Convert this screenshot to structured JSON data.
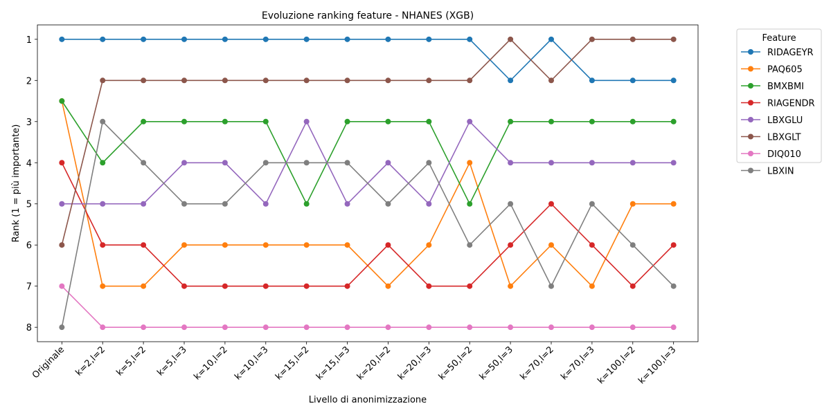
{
  "chart_data": {
    "type": "line",
    "title": "Evoluzione ranking feature - NHANES (XGB)",
    "xlabel": "Livello di anonimizzazione",
    "ylabel": "Rank (1 = più importante)",
    "categories": [
      "Originale",
      "k=2,l=2",
      "k=5,l=2",
      "k=5,l=3",
      "k=10,l=2",
      "k=10,l=3",
      "k=15,l=2",
      "k=15,l=3",
      "k=20,l=2",
      "k=20,l=3",
      "k=50,l=2",
      "k=50,l=3",
      "k=70,l=2",
      "k=70,l=3",
      "k=100,l=2",
      "k=100,l=3"
    ],
    "yticks": [
      "1",
      "2",
      "3",
      "4",
      "5",
      "6",
      "7",
      "8"
    ],
    "ylim": [
      0.65,
      8.35
    ],
    "y_inverted": true,
    "grid": false,
    "legend": {
      "title": "Feature",
      "placement": "outside-right-top"
    },
    "series": [
      {
        "name": "RIDAGEYR",
        "color": "#1f77b4",
        "values": [
          1,
          1,
          1,
          1,
          1,
          1,
          1,
          1,
          1,
          1,
          1,
          2,
          1,
          2,
          2,
          2
        ]
      },
      {
        "name": "PAQ605",
        "color": "#ff7f0e",
        "values": [
          2.5,
          7,
          7,
          6,
          6,
          6,
          6,
          6,
          7,
          6,
          4,
          7,
          6,
          7,
          5,
          5
        ]
      },
      {
        "name": "BMXBMI",
        "color": "#2ca02c",
        "values": [
          2.5,
          4,
          3,
          3,
          3,
          3,
          5,
          3,
          3,
          3,
          5,
          3,
          3,
          3,
          3,
          3
        ]
      },
      {
        "name": "RIAGENDR",
        "color": "#d62728",
        "values": [
          4,
          6,
          6,
          7,
          7,
          7,
          7,
          7,
          6,
          7,
          7,
          6,
          5,
          6,
          7,
          6
        ]
      },
      {
        "name": "LBXGLU",
        "color": "#9467bd",
        "values": [
          5,
          5,
          5,
          4,
          4,
          5,
          3,
          5,
          4,
          5,
          3,
          4,
          4,
          4,
          4,
          4
        ]
      },
      {
        "name": "LBXGLT",
        "color": "#8c564b",
        "values": [
          6,
          2,
          2,
          2,
          2,
          2,
          2,
          2,
          2,
          2,
          2,
          1,
          2,
          1,
          1,
          1
        ]
      },
      {
        "name": "DIQ010",
        "color": "#e377c2",
        "values": [
          7,
          8,
          8,
          8,
          8,
          8,
          8,
          8,
          8,
          8,
          8,
          8,
          8,
          8,
          8,
          8
        ]
      },
      {
        "name": "LBXIN",
        "color": "#7f7f7f",
        "values": [
          8,
          3,
          4,
          5,
          5,
          4,
          4,
          4,
          5,
          4,
          6,
          5,
          7,
          5,
          6,
          7
        ]
      }
    ]
  }
}
